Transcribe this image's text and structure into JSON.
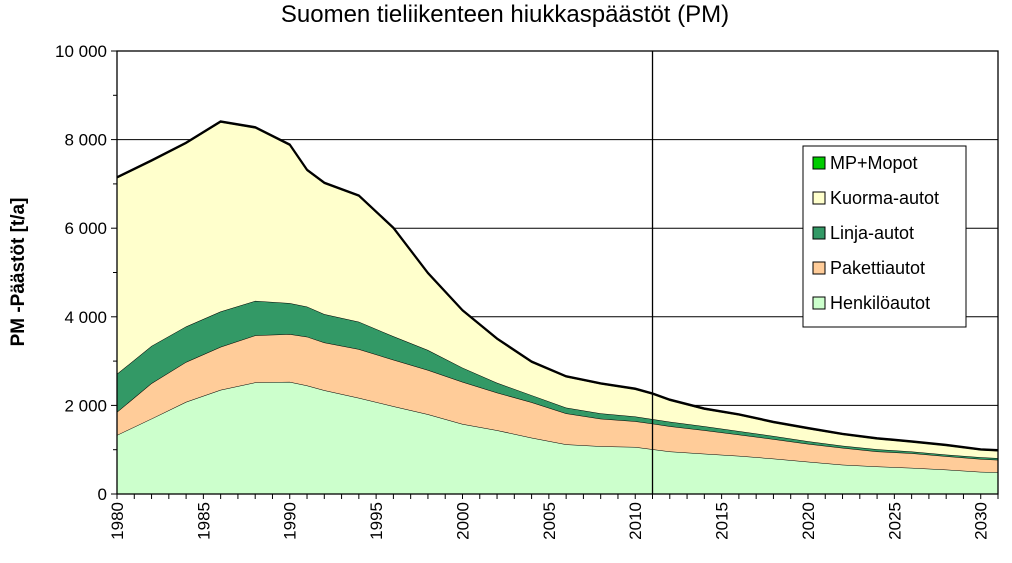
{
  "chart_data": {
    "type": "area",
    "title": "Suomen tieliikenteen hiukkaspäästöt (PM)",
    "xlabel": "",
    "ylabel": "PM -Päästöt [t/a]",
    "xlim": [
      1980,
      2031
    ],
    "ylim": [
      0,
      10000
    ],
    "grid": true,
    "legend_position": "right",
    "reference_line_year": 2011,
    "x_ticks": [
      1980,
      1985,
      1990,
      1995,
      2000,
      2005,
      2010,
      2015,
      2020,
      2025,
      2030
    ],
    "y_ticks": [
      {
        "value": 0,
        "label": "0"
      },
      {
        "value": 2000,
        "label": "2 000"
      },
      {
        "value": 4000,
        "label": "4 000"
      },
      {
        "value": 6000,
        "label": "6 000"
      },
      {
        "value": 8000,
        "label": "8 000"
      },
      {
        "value": 10000,
        "label": "10 000"
      }
    ],
    "x": [
      1980,
      1982,
      1984,
      1986,
      1988,
      1990,
      1991,
      1992,
      1994,
      1996,
      1998,
      2000,
      2002,
      2004,
      2006,
      2008,
      2010,
      2011,
      2012,
      2014,
      2016,
      2018,
      2020,
      2022,
      2024,
      2026,
      2028,
      2030,
      2031
    ],
    "series": [
      {
        "name": "Henkilöautot",
        "color": "#ccffcc",
        "values": [
          1330,
          1700,
          2080,
          2350,
          2520,
          2530,
          2450,
          2340,
          2170,
          1980,
          1800,
          1580,
          1440,
          1270,
          1120,
          1080,
          1060,
          1010,
          960,
          910,
          860,
          800,
          730,
          660,
          620,
          590,
          550,
          500,
          490
        ]
      },
      {
        "name": "Pakettiautot",
        "color": "#ffcc99",
        "values": [
          520,
          800,
          900,
          970,
          1060,
          1080,
          1100,
          1080,
          1100,
          1050,
          1000,
          950,
          850,
          800,
          700,
          620,
          580,
          580,
          570,
          530,
          480,
          440,
          400,
          380,
          340,
          330,
          300,
          290,
          280
        ]
      },
      {
        "name": "Linja-autot",
        "color": "#339966",
        "values": [
          860,
          840,
          800,
          800,
          780,
          700,
          680,
          640,
          620,
          530,
          450,
          320,
          220,
          160,
          130,
          120,
          110,
          100,
          100,
          90,
          80,
          70,
          60,
          50,
          50,
          40,
          40,
          40,
          40
        ]
      },
      {
        "name": "Kuorma-autot",
        "color": "#ffffcc",
        "values": [
          4420,
          4170,
          4130,
          4270,
          3900,
          3560,
          3070,
          2950,
          2830,
          2430,
          1720,
          1280,
          980,
          740,
          690,
          660,
          610,
          560,
          480,
          380,
          360,
          300,
          280,
          250,
          230,
          210,
          200,
          160,
          160
        ]
      },
      {
        "name": "MP+Mopot",
        "color": "#00cc00",
        "values": [
          20,
          20,
          20,
          20,
          20,
          20,
          20,
          20,
          20,
          20,
          20,
          20,
          20,
          20,
          20,
          20,
          20,
          20,
          20,
          20,
          20,
          20,
          20,
          20,
          20,
          20,
          20,
          20,
          20
        ]
      }
    ]
  }
}
